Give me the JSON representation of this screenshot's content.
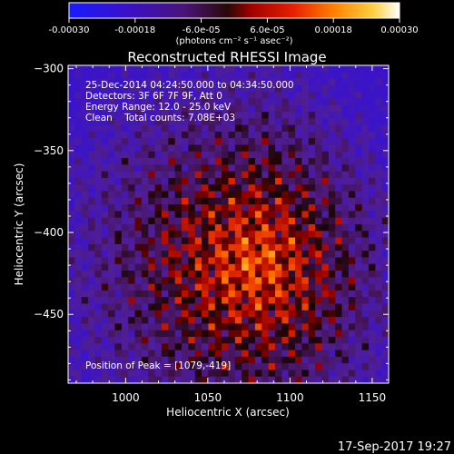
{
  "colorbar": {
    "ticks": [
      "-0.00030",
      "-0.00018",
      "-6.0e-05",
      "6.0e-05",
      "0.00018",
      "0.00030"
    ],
    "unit_label": "(photons cm⁻² s⁻¹ asec⁻²)",
    "range": [
      -0.0003,
      0.0003
    ]
  },
  "info": {
    "line1": "25-Dec-2014 04:24:50.000 to 04:34:50.000",
    "line2": "Detectors: 3F 6F 7F 9F, Att 0",
    "line3": "Energy Range: 12.0 - 25.0 keV",
    "line4": "Clean    Total counts: 7.08E+03",
    "peak": "Position of Peak = [1079,-419]"
  },
  "footer": {
    "timestamp": "17-Sep-2017 19:27"
  },
  "chart_data": {
    "type": "heatmap",
    "title": "Reconstructed RHESSI Image",
    "xlabel": "Heliocentric X (arcsec)",
    "ylabel": "Heliocentric Y (arcsec)",
    "xlim": [
      965,
      1160
    ],
    "ylim": [
      -492,
      -298
    ],
    "xticks": [
      1000,
      1050,
      1100,
      1150
    ],
    "yticks": [
      -300,
      -350,
      -400,
      -450
    ],
    "xticklabels": [
      "1000",
      "1050",
      "1100",
      "1150"
    ],
    "yticklabels": [
      "−300",
      "−350",
      "−400",
      "−450"
    ],
    "colormap": "RHESSI red-temperature (negative: blue to purple, positive: red, orange, yellow, white)",
    "peak": {
      "x": 1079,
      "y": -419
    }
  }
}
